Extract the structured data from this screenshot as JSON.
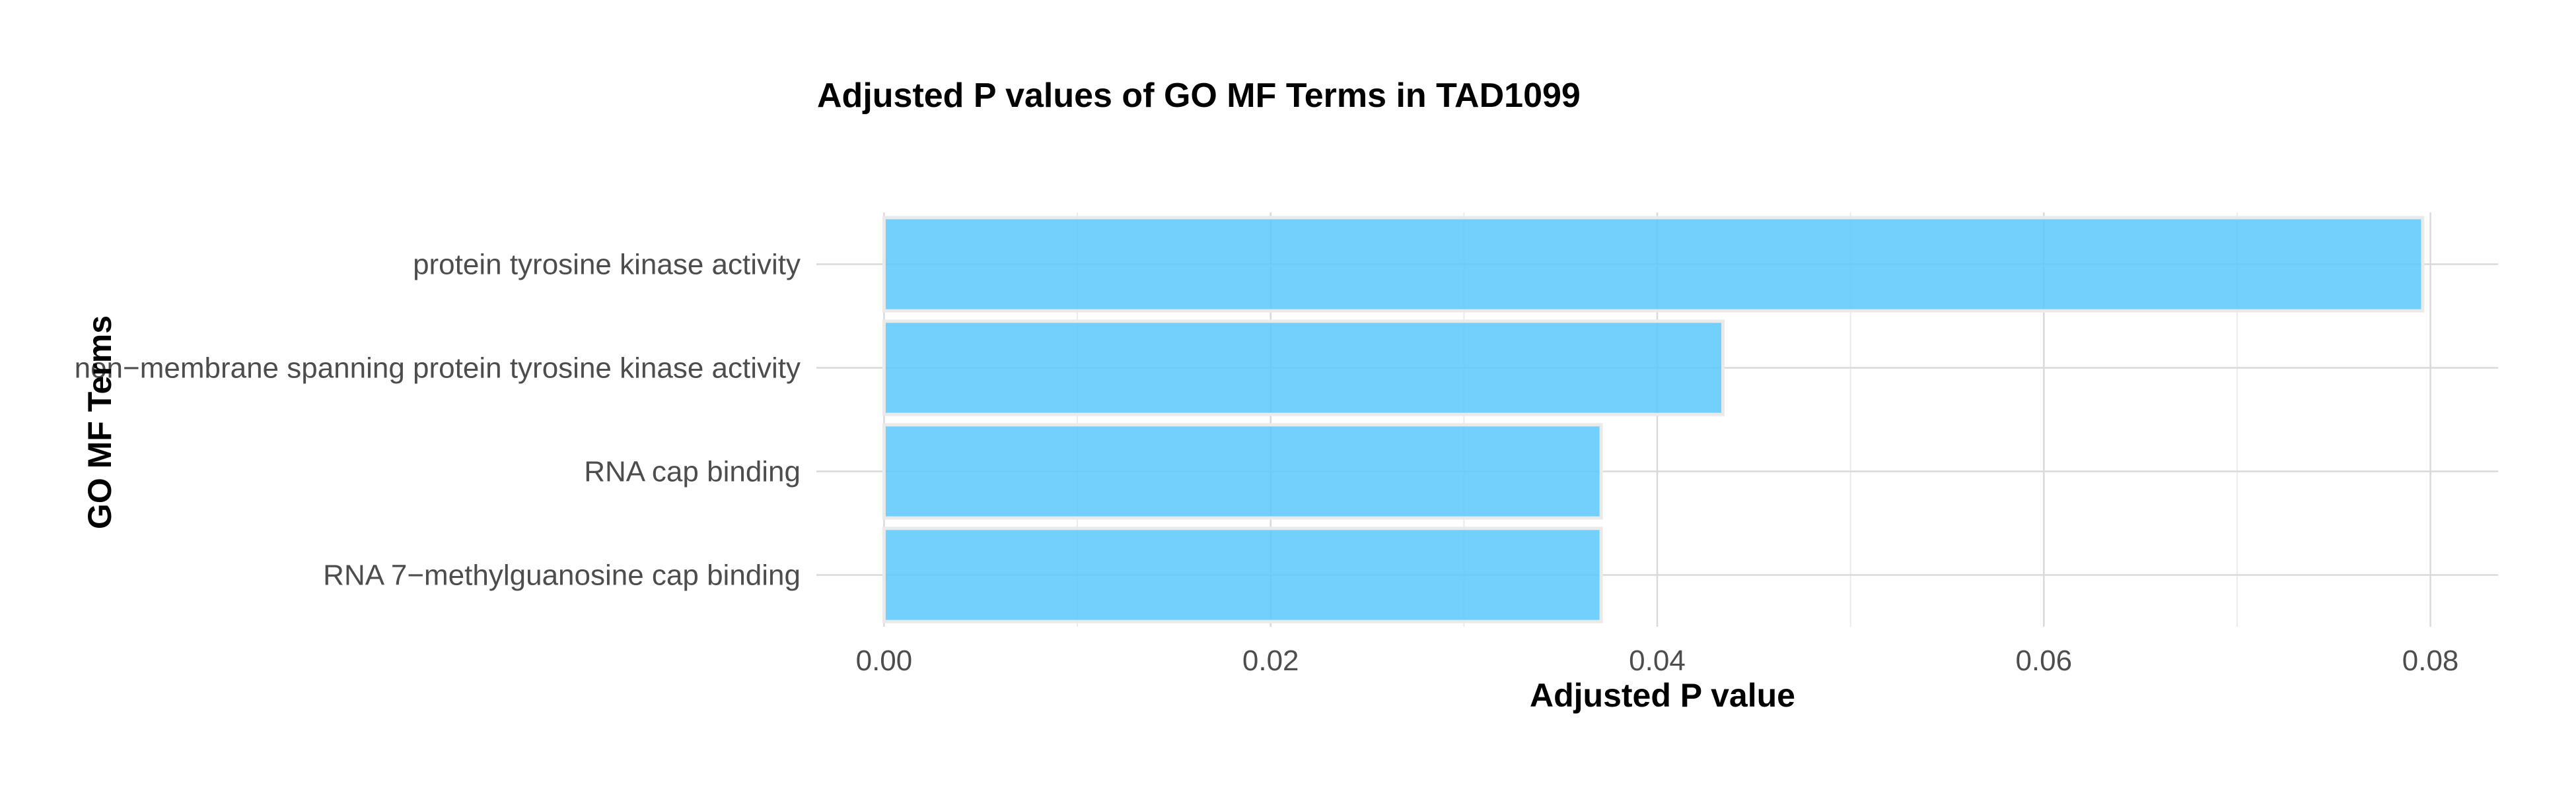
{
  "chart_data": {
    "type": "bar",
    "orientation": "horizontal",
    "title": "Adjusted P values of GO MF Terms in TAD1099",
    "xlabel": "Adjusted P value",
    "ylabel": "GO MF Terms",
    "categories": [
      "protein tyrosine kinase activity",
      "non−membrane spanning protein tyrosine kinase activity",
      "RNA cap binding",
      "RNA 7−methylguanosine cap binding"
    ],
    "values": [
      0.0796,
      0.0434,
      0.0371,
      0.0371
    ],
    "xlim": [
      -0.0035,
      0.0835
    ],
    "x_ticks": [
      0.0,
      0.02,
      0.04,
      0.06,
      0.08
    ],
    "x_tick_labels": [
      "0.00",
      "0.02",
      "0.04",
      "0.06",
      "0.08"
    ],
    "grid": true,
    "bar_color": "#5bc8fd",
    "bar_opacity": 0.85,
    "bar_outline_color": "#eaeaea",
    "grid_color": "#d9d9d9"
  }
}
